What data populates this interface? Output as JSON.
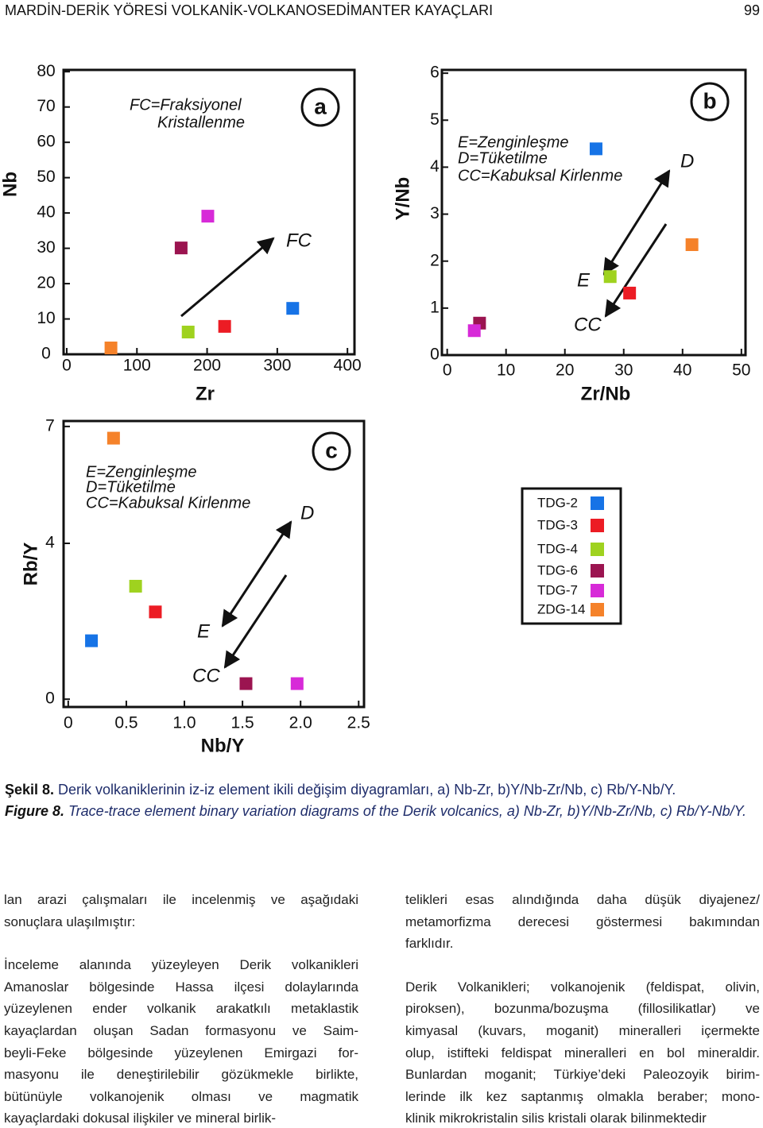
{
  "header": {
    "title": "MARDİN-DERİK YÖRESİ VOLKANİK-VOLKANOSEDİMANTER KAYAÇLARI",
    "page": "99"
  },
  "chart_data": [
    {
      "type": "scatter",
      "x_label": "Zr",
      "y_label": "Nb",
      "annotations": [
        "FC=Fraksiyonel",
        "Kristallenme",
        "a",
        "FC"
      ],
      "xlim": [
        -4.5,
        410
      ],
      "ylim": [
        0,
        80.5
      ],
      "xticks": [
        0,
        100,
        200,
        300,
        400
      ],
      "yticks": [
        0,
        10,
        20,
        30,
        40,
        50,
        60,
        70,
        80
      ],
      "series": [
        {
          "name": "TDG-2",
          "color": "#1673e6",
          "x": [
            322
          ],
          "values": [
            13
          ]
        },
        {
          "name": "TDG-3",
          "color": "#ec1c24",
          "x": [
            225
          ],
          "values": [
            7.9
          ]
        },
        {
          "name": "TDG-4",
          "color": "#9fd21f",
          "x": [
            173
          ],
          "values": [
            6.3
          ]
        },
        {
          "name": "TDG-6",
          "color": "#9b1450",
          "x": [
            163
          ],
          "values": [
            30.1
          ]
        },
        {
          "name": "TDG-7",
          "color": "#d72ad8",
          "x": [
            201
          ],
          "values": [
            39.1
          ]
        },
        {
          "name": "ZDG-14",
          "color": "#f5822a",
          "x": [
            63
          ],
          "values": [
            1.8
          ]
        }
      ]
    },
    {
      "type": "scatter",
      "x_label": "Zr/Nb",
      "y_label": "Y/Nb",
      "annotations": [
        "E=Zenginleşme",
        "D=Tüketilme",
        "CC=Kabuksal Kirlenme",
        "b",
        "D",
        "E",
        "CC"
      ],
      "xlim": [
        -0.9,
        50.7
      ],
      "ylim": [
        0,
        6.07
      ],
      "xticks": [
        0,
        10,
        20,
        30,
        40,
        50
      ],
      "yticks": [
        0,
        1,
        2,
        3,
        4,
        5,
        6
      ],
      "series": [
        {
          "color": "#1673e6",
          "x": [
            25.3
          ],
          "values": [
            4.39
          ]
        },
        {
          "color": "#ec1c24",
          "x": [
            31
          ],
          "values": [
            1.32
          ]
        },
        {
          "color": "#9fd21f",
          "x": [
            27.7
          ],
          "values": [
            1.67
          ]
        },
        {
          "color": "#9b1450",
          "x": [
            5.5
          ],
          "values": [
            0.68
          ]
        },
        {
          "color": "#d72ad8",
          "x": [
            4.6
          ],
          "values": [
            0.52
          ]
        },
        {
          "color": "#f5822a",
          "x": [
            41.6
          ],
          "values": [
            2.35
          ]
        }
      ]
    },
    {
      "type": "scatter",
      "x_label": "Nb/Y",
      "y_label": "Rb/Y",
      "annotations": [
        "E=Zenginleşme",
        "D=Tüketilme",
        "CC=Kabuksal Kirlenme",
        "c",
        "D",
        "E",
        "CC"
      ],
      "xlim": [
        -0.04,
        2.546
      ],
      "ylim": [
        -0.2,
        7.14
      ],
      "xticks": [
        0,
        0.5,
        {
          "value": 1,
          "label": "1.0"
        },
        1.5,
        {
          "value": 2,
          "label": "2.0"
        },
        2.5
      ],
      "yticks": [
        0,
        4,
        7
      ],
      "series": [
        {
          "color": "#1673e6",
          "x": [
            0.2
          ],
          "values": [
            1.5
          ]
        },
        {
          "color": "#ec1c24",
          "x": [
            0.75
          ],
          "values": [
            2.24
          ]
        },
        {
          "color": "#9fd21f",
          "x": [
            0.58
          ],
          "values": [
            2.9
          ]
        },
        {
          "color": "#9b1450",
          "x": [
            1.53
          ],
          "values": [
            0.4
          ]
        },
        {
          "color": "#d72ad8",
          "x": [
            1.97
          ],
          "values": [
            0.4
          ]
        },
        {
          "color": "#f5822a",
          "x": [
            0.39
          ],
          "values": [
            6.7
          ]
        }
      ]
    }
  ],
  "caption": {
    "tr_label": "Şekil 8.",
    "tr_text": "Derik volkaniklerinin iz-iz element ikili değişim diyagramları, a) Nb-Zr, b)Y/Nb-Zr/Nb, c) Rb/Y-Nb/Y.",
    "en_label": "Figure 8.",
    "en_text": "Trace-trace element binary variation diagrams of the Derik volcanics, a) Nb-Zr, b)Y/Nb-Zr/Nb, c) Rb/Y-Nb/Y."
  },
  "body": {
    "left": [
      [
        "lan arazi çalışmaları ile incelenmiş ve aşağıdaki",
        "sonuçlara ulaşılmıştır:"
      ],
      [
        "İnceleme alanında yüzeyleyen Derik volkanikleri",
        "Amanoslar bölgesinde Hassa ilçesi dolaylarında",
        "yüzeylenen ender volkanik arakatkılı metaklastik",
        "kayaçlardan oluşan Sadan formasyonu ve Saim-",
        "beyli-Feke bölgesinde yüzeylenen Emirgazi for-",
        "masyonu ile deneştirilebilir gözükmekle birlikte,",
        "bütünüyle volkanojenik olması ve magmatik",
        "kayaçlardaki dokusal ilişkiler ve mineral birlik-"
      ]
    ],
    "right": [
      [
        "telikleri esas alındığında daha düşük diyajenez/",
        "metamorfizma derecesi göstermesi bakımından",
        "farklıdır."
      ],
      [
        "Derik Volkanikleri; volkanojenik (feldispat, olivin,",
        "piroksen), bozunma/bozuşma (fillosilikatlar) ve",
        "kimyasal (kuvars, moganit) mineralleri içermekte",
        "olup, istifteki feldispat mineralleri en bol mineraldir.",
        "Bunlardan moganit; Türkiye’deki Paleozoyik birim-",
        "lerinde ilk kez saptanmış olmakla beraber; mono-",
        "klinik mikrokristalin silis kristali olarak bilinmektedir"
      ]
    ]
  }
}
